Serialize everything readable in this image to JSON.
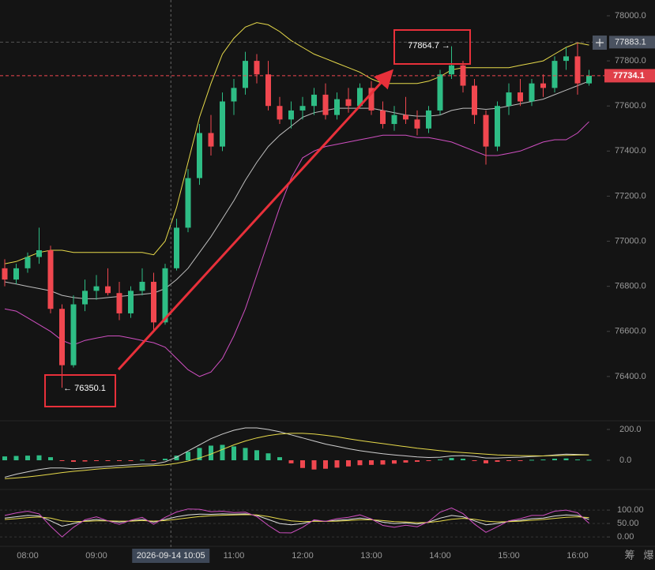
{
  "chart_data": [
    {
      "type": "candlestick",
      "categories": [
        null,
        null,
        "08:00",
        null,
        null,
        null,
        null,
        null,
        "09:00",
        null,
        null,
        null,
        null,
        null,
        null,
        null,
        null,
        null,
        null,
        null,
        "11:00",
        null,
        null,
        null,
        null,
        null,
        "12:00",
        null,
        null,
        null,
        null,
        null,
        "13:00",
        null,
        null,
        null,
        null,
        null,
        "14:00",
        null,
        null,
        null,
        null,
        null,
        "15:00",
        null,
        null,
        null,
        null,
        null,
        "16:00",
        null
      ],
      "open": [
        76880,
        76830,
        76880,
        76930,
        76960,
        76700,
        76450,
        76720,
        76780,
        76800,
        76770,
        76680,
        76780,
        76820,
        76640,
        76880,
        77060,
        77280,
        77480,
        77420,
        77620,
        77680,
        77800,
        77740,
        77600,
        77540,
        77580,
        77600,
        77650,
        77560,
        77630,
        77600,
        77680,
        77580,
        77520,
        77560,
        77540,
        77500,
        77580,
        77740,
        77780,
        77690,
        77560,
        77420,
        77600,
        77660,
        77620,
        77700,
        77680,
        77800,
        77820,
        77700
      ],
      "high": [
        76920,
        76900,
        76950,
        77060,
        76980,
        76720,
        76760,
        76830,
        76850,
        76880,
        76820,
        76800,
        76880,
        76860,
        76900,
        77100,
        77320,
        77520,
        77560,
        77660,
        77720,
        77840,
        77830,
        77800,
        77640,
        77620,
        77640,
        77680,
        77700,
        77660,
        77680,
        77700,
        77710,
        77620,
        77600,
        77640,
        77580,
        77600,
        77760,
        77864.7,
        77800,
        77720,
        77580,
        77620,
        77700,
        77720,
        77720,
        77740,
        77820,
        77860,
        77883.1,
        77760
      ],
      "low": [
        76800,
        76810,
        76860,
        76900,
        76680,
        76350.1,
        76440,
        76690,
        76740,
        76760,
        76650,
        76660,
        76760,
        76600,
        76630,
        76870,
        77040,
        77250,
        77380,
        77400,
        77560,
        77650,
        77700,
        77580,
        77520,
        77500,
        77540,
        77560,
        77540,
        77540,
        77570,
        77590,
        77560,
        77500,
        77490,
        77520,
        77470,
        77480,
        77560,
        77720,
        77660,
        77520,
        77340,
        77400,
        77560,
        77600,
        77600,
        77640,
        77660,
        77760,
        77650,
        77690
      ],
      "close": [
        76830,
        76880,
        76930,
        76960,
        76700,
        76450,
        76720,
        76780,
        76800,
        76770,
        76680,
        76780,
        76820,
        76640,
        76880,
        77060,
        77280,
        77480,
        77420,
        77620,
        77680,
        77800,
        77740,
        77600,
        77540,
        77580,
        77600,
        77650,
        77560,
        77630,
        77600,
        77680,
        77580,
        77520,
        77560,
        77540,
        77500,
        77580,
        77740,
        77780,
        77690,
        77560,
        77420,
        77600,
        77660,
        77620,
        77700,
        77680,
        77800,
        77820,
        77700,
        77734.1
      ],
      "up_color": "#2ebd85",
      "down_color": "#f0474f",
      "bands": [
        {
          "color": "#e6d94a",
          "values": [
            76900,
            76910,
            76930,
            76950,
            76960,
            76960,
            76950,
            76950,
            76950,
            76950,
            76950,
            76950,
            76950,
            76940,
            77000,
            77150,
            77350,
            77550,
            77700,
            77830,
            77900,
            77950,
            77970,
            77960,
            77930,
            77890,
            77860,
            77830,
            77810,
            77790,
            77770,
            77750,
            77720,
            77700,
            77700,
            77700,
            77700,
            77710,
            77730,
            77760,
            77770,
            77770,
            77770,
            77770,
            77770,
            77780,
            77790,
            77800,
            77830,
            77860,
            77880,
            77870
          ]
        },
        {
          "color": "#bdbdbd",
          "values": [
            76820,
            76810,
            76800,
            76790,
            76780,
            76760,
            76750,
            76745,
            76745,
            76750,
            76755,
            76760,
            76765,
            76770,
            76790,
            76830,
            76880,
            76950,
            77020,
            77100,
            77180,
            77270,
            77350,
            77420,
            77470,
            77510,
            77550,
            77570,
            77580,
            77590,
            77590,
            77590,
            77590,
            77580,
            77570,
            77560,
            77555,
            77555,
            77560,
            77580,
            77590,
            77590,
            77585,
            77590,
            77600,
            77610,
            77620,
            77630,
            77650,
            77670,
            77690,
            77710
          ]
        },
        {
          "color": "#cf4fc1",
          "values": [
            76700,
            76690,
            76660,
            76630,
            76600,
            76560,
            76540,
            76560,
            76570,
            76580,
            76580,
            76570,
            76560,
            76550,
            76530,
            76480,
            76430,
            76400,
            76420,
            76480,
            76580,
            76700,
            76850,
            77000,
            77150,
            77280,
            77370,
            77400,
            77420,
            77430,
            77440,
            77450,
            77460,
            77470,
            77470,
            77470,
            77460,
            77460,
            77450,
            77440,
            77420,
            77400,
            77380,
            77380,
            77390,
            77400,
            77420,
            77440,
            77450,
            77450,
            77480,
            77530
          ]
        }
      ],
      "ylim": [
        76214,
        78070
      ],
      "yticks": [
        {
          "value": 76400,
          "label": "76400.0"
        },
        {
          "value": 76600,
          "label": "76600.0"
        },
        {
          "value": 76800,
          "label": "76800.0"
        },
        {
          "value": 77000,
          "label": "77000.0"
        },
        {
          "value": 77200,
          "label": "77200.0"
        },
        {
          "value": 77400,
          "label": "77400.0"
        },
        {
          "value": 77600,
          "label": "77600.0"
        },
        {
          "value": 77800,
          "label": "77800.0"
        },
        {
          "value": 78000,
          "label": "78000.0"
        }
      ],
      "max_price": 77883.1,
      "last_price": 77734.1,
      "annotations": [
        "← 76350.1",
        "77864.7 →"
      ],
      "crosshair": "2026-09-14 10:05"
    },
    {
      "type": "macd",
      "values": [
        25,
        28,
        30,
        32,
        20,
        -5,
        -10,
        -8,
        -5,
        -2,
        -4,
        -2,
        3,
        -5,
        10,
        30,
        55,
        80,
        95,
        100,
        90,
        80,
        65,
        45,
        20,
        -20,
        -50,
        -60,
        -55,
        -48,
        -40,
        -32,
        -30,
        -28,
        -22,
        -15,
        -10,
        -5,
        5,
        15,
        10,
        -5,
        -20,
        -10,
        -5,
        -2,
        3,
        5,
        10,
        12,
        5,
        3
      ],
      "up_color": "#2ebd85",
      "down_color": "#f0474f",
      "series": [
        {
          "color": "#cfcfcf",
          "values": [
            -110,
            -90,
            -75,
            -60,
            -50,
            -50,
            -55,
            -50,
            -45,
            -40,
            -35,
            -30,
            -25,
            -25,
            -10,
            20,
            60,
            100,
            140,
            170,
            195,
            210,
            210,
            200,
            185,
            165,
            145,
            125,
            105,
            90,
            75,
            62,
            52,
            42,
            35,
            28,
            22,
            18,
            20,
            28,
            30,
            25,
            15,
            15,
            18,
            20,
            24,
            28,
            35,
            40,
            38,
            36
          ]
        },
        {
          "color": "#e6d94a",
          "values": [
            -120,
            -115,
            -108,
            -100,
            -90,
            -80,
            -72,
            -65,
            -58,
            -52,
            -47,
            -42,
            -38,
            -34,
            -30,
            -20,
            -5,
            15,
            40,
            70,
            100,
            125,
            145,
            160,
            170,
            175,
            175,
            170,
            162,
            152,
            140,
            128,
            118,
            108,
            98,
            88,
            78,
            70,
            62,
            55,
            50,
            45,
            40,
            35,
            32,
            30,
            29,
            28,
            30,
            32,
            34,
            35
          ]
        }
      ],
      "ylim": [
        -164,
        246
      ],
      "yticks": [
        {
          "value": 200,
          "label": "200.0"
        },
        {
          "value": 0,
          "label": "0.0"
        }
      ]
    },
    {
      "type": "line",
      "series": [
        {
          "color": "#e0e0e0",
          "values": [
            70,
            75,
            80,
            78,
            60,
            40,
            50,
            60,
            65,
            60,
            55,
            60,
            65,
            55,
            65,
            75,
            82,
            85,
            84,
            86,
            85,
            86,
            80,
            65,
            50,
            45,
            50,
            60,
            58,
            62,
            65,
            70,
            65,
            55,
            50,
            52,
            48,
            55,
            70,
            80,
            75,
            60,
            45,
            50,
            58,
            62,
            68,
            70,
            78,
            82,
            80,
            65
          ]
        },
        {
          "color": "#e6d94a",
          "values": [
            65,
            68,
            72,
            74,
            70,
            60,
            57,
            58,
            60,
            60,
            59,
            59,
            61,
            59,
            61,
            66,
            71,
            76,
            79,
            81,
            82,
            83,
            82,
            76,
            67,
            60,
            57,
            58,
            58,
            59,
            61,
            64,
            64,
            61,
            57,
            56,
            53,
            54,
            59,
            66,
            69,
            66,
            59,
            56,
            57,
            59,
            62,
            65,
            69,
            73,
            75,
            72
          ]
        },
        {
          "color": "#cf4fc1",
          "values": [
            80,
            89,
            96,
            86,
            40,
            0,
            36,
            64,
            75,
            60,
            47,
            62,
            73,
            47,
            73,
            93,
            104,
            103,
            94,
            96,
            91,
            92,
            76,
            43,
            16,
            15,
            36,
            64,
            58,
            68,
            73,
            82,
            67,
            43,
            36,
            44,
            38,
            57,
            92,
            108,
            87,
            48,
            17,
            38,
            60,
            68,
            80,
            80,
            96,
            100,
            90,
            51
          ]
        }
      ],
      "ylim": [
        -29,
        162
      ],
      "yticks": [
        {
          "value": 100,
          "label": "100.00"
        },
        {
          "value": 50,
          "label": "50.00"
        },
        {
          "value": 0,
          "label": "0.00"
        }
      ]
    }
  ],
  "toolbar": [
    "筹",
    "爆"
  ]
}
